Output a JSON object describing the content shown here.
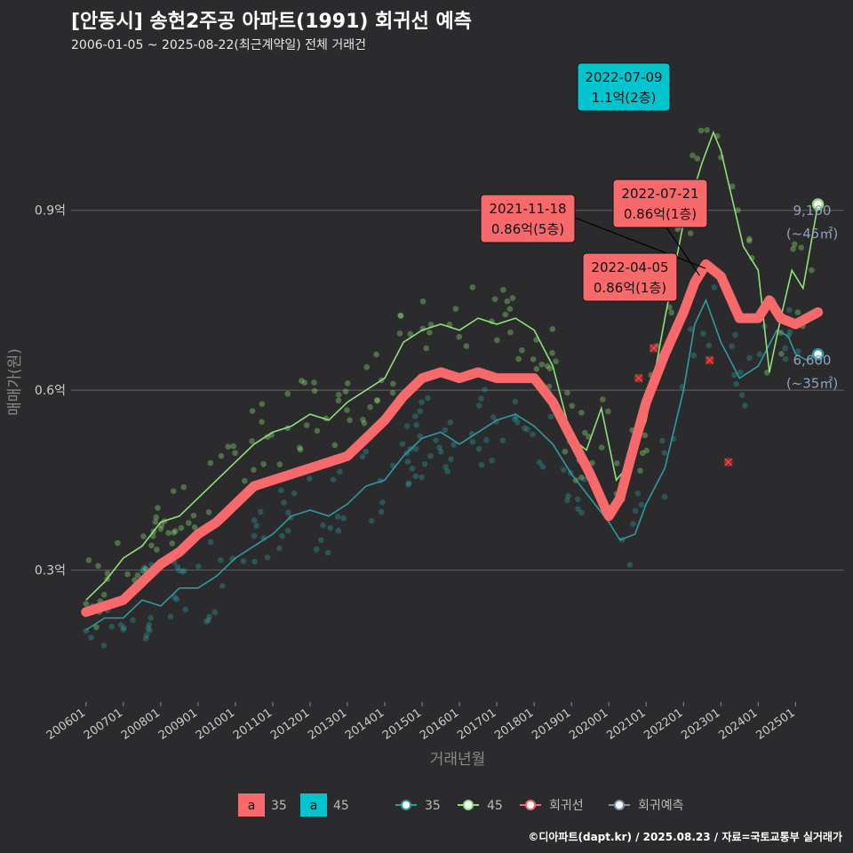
{
  "title": "[안동시] 송현2주공 아파트(1991) 회귀선 예측",
  "subtitle": "2006-01-05 ~ 2025-08-22(최근계약일) 전체 거래건",
  "credit": "©디아파트(dapt.kr) / 2025.08.23 / 자료=국토교통부 실거래가",
  "colors": {
    "background": "#2b2b2d",
    "grid": "#5a5a5c",
    "s35": "#2f9aa0",
    "s45": "#8fe07a",
    "regression": "#f8696b",
    "forecast": "#8090b0",
    "callout_cyan": "#00c5cf"
  },
  "chart_data": {
    "type": "line",
    "title": "[안동시] 송현2주공 아파트(1991) 회귀선 예측",
    "subtitle": "2006-01-05 ~ 2025-08-22(최근계약일) 전체 거래건",
    "xlabel": "거래년월",
    "ylabel": "매매가(원)",
    "x_ticks": [
      "200601",
      "200701",
      "200801",
      "200901",
      "201001",
      "201101",
      "201201",
      "201301",
      "201401",
      "201501",
      "201601",
      "201701",
      "201801",
      "201901",
      "202001",
      "202101",
      "202201",
      "202301",
      "202401",
      "202501"
    ],
    "y_ticks": [
      {
        "value": 0.3,
        "label": "0.3억"
      },
      {
        "value": 0.6,
        "label": "0.6억"
      },
      {
        "value": 0.9,
        "label": "0.9억"
      }
    ],
    "xlim": [
      2005.6,
      2026.3
    ],
    "ylim": [
      0.08,
      1.15
    ],
    "grid": true,
    "series": [
      {
        "name": "35",
        "key": "s35",
        "points": [
          [
            2006.0,
            0.2
          ],
          [
            2006.5,
            0.22
          ],
          [
            2007.0,
            0.22
          ],
          [
            2007.5,
            0.25
          ],
          [
            2008.0,
            0.24
          ],
          [
            2008.5,
            0.27
          ],
          [
            2009.0,
            0.27
          ],
          [
            2009.5,
            0.29
          ],
          [
            2010.0,
            0.32
          ],
          [
            2010.5,
            0.34
          ],
          [
            2011.0,
            0.36
          ],
          [
            2011.5,
            0.39
          ],
          [
            2012.0,
            0.4
          ],
          [
            2012.5,
            0.39
          ],
          [
            2013.0,
            0.41
          ],
          [
            2013.5,
            0.44
          ],
          [
            2014.0,
            0.45
          ],
          [
            2014.5,
            0.49
          ],
          [
            2015.0,
            0.52
          ],
          [
            2015.5,
            0.53
          ],
          [
            2016.0,
            0.51
          ],
          [
            2016.5,
            0.53
          ],
          [
            2017.0,
            0.55
          ],
          [
            2017.5,
            0.56
          ],
          [
            2018.0,
            0.54
          ],
          [
            2018.5,
            0.51
          ],
          [
            2019.0,
            0.46
          ],
          [
            2019.5,
            0.42
          ],
          [
            2020.0,
            0.38
          ],
          [
            2020.3,
            0.35
          ],
          [
            2020.7,
            0.36
          ],
          [
            2021.0,
            0.41
          ],
          [
            2021.5,
            0.47
          ],
          [
            2022.0,
            0.6
          ],
          [
            2022.3,
            0.71
          ],
          [
            2022.6,
            0.75
          ],
          [
            2023.0,
            0.68
          ],
          [
            2023.5,
            0.62
          ],
          [
            2024.0,
            0.64
          ],
          [
            2024.5,
            0.7
          ],
          [
            2024.8,
            0.69
          ],
          [
            2025.0,
            0.66
          ],
          [
            2025.3,
            0.65
          ],
          [
            2025.6,
            0.66
          ]
        ]
      },
      {
        "name": "45",
        "key": "s45",
        "points": [
          [
            2006.0,
            0.25
          ],
          [
            2006.5,
            0.28
          ],
          [
            2007.0,
            0.32
          ],
          [
            2007.5,
            0.34
          ],
          [
            2008.0,
            0.38
          ],
          [
            2008.5,
            0.39
          ],
          [
            2009.0,
            0.42
          ],
          [
            2009.5,
            0.45
          ],
          [
            2010.0,
            0.48
          ],
          [
            2010.5,
            0.51
          ],
          [
            2011.0,
            0.53
          ],
          [
            2011.5,
            0.54
          ],
          [
            2012.0,
            0.56
          ],
          [
            2012.5,
            0.55
          ],
          [
            2013.0,
            0.58
          ],
          [
            2013.5,
            0.6
          ],
          [
            2014.0,
            0.62
          ],
          [
            2014.5,
            0.68
          ],
          [
            2015.0,
            0.7
          ],
          [
            2015.5,
            0.71
          ],
          [
            2016.0,
            0.7
          ],
          [
            2016.5,
            0.72
          ],
          [
            2017.0,
            0.71
          ],
          [
            2017.5,
            0.72
          ],
          [
            2018.0,
            0.7
          ],
          [
            2018.5,
            0.64
          ],
          [
            2019.0,
            0.52
          ],
          [
            2019.4,
            0.5
          ],
          [
            2019.8,
            0.57
          ],
          [
            2020.2,
            0.45
          ],
          [
            2020.6,
            0.48
          ],
          [
            2021.0,
            0.55
          ],
          [
            2021.5,
            0.72
          ],
          [
            2022.0,
            0.88
          ],
          [
            2022.5,
            0.98
          ],
          [
            2022.8,
            1.03
          ],
          [
            2023.0,
            1.0
          ],
          [
            2023.3,
            0.92
          ],
          [
            2023.6,
            0.84
          ],
          [
            2024.0,
            0.8
          ],
          [
            2024.3,
            0.63
          ],
          [
            2024.6,
            0.72
          ],
          [
            2024.9,
            0.8
          ],
          [
            2025.2,
            0.77
          ],
          [
            2025.6,
            0.91
          ]
        ]
      }
    ],
    "regression": {
      "name": "회귀선",
      "points": [
        [
          2006.0,
          0.23
        ],
        [
          2006.5,
          0.24
        ],
        [
          2007.0,
          0.25
        ],
        [
          2007.5,
          0.28
        ],
        [
          2008.0,
          0.31
        ],
        [
          2008.5,
          0.33
        ],
        [
          2009.0,
          0.36
        ],
        [
          2009.5,
          0.38
        ],
        [
          2010.0,
          0.41
        ],
        [
          2010.5,
          0.44
        ],
        [
          2011.0,
          0.45
        ],
        [
          2011.5,
          0.46
        ],
        [
          2012.0,
          0.47
        ],
        [
          2012.5,
          0.48
        ],
        [
          2013.0,
          0.49
        ],
        [
          2013.5,
          0.52
        ],
        [
          2014.0,
          0.55
        ],
        [
          2014.5,
          0.59
        ],
        [
          2015.0,
          0.62
        ],
        [
          2015.5,
          0.63
        ],
        [
          2016.0,
          0.62
        ],
        [
          2016.5,
          0.63
        ],
        [
          2017.0,
          0.62
        ],
        [
          2017.5,
          0.62
        ],
        [
          2018.0,
          0.62
        ],
        [
          2018.5,
          0.58
        ],
        [
          2019.0,
          0.52
        ],
        [
          2019.5,
          0.46
        ],
        [
          2020.0,
          0.39
        ],
        [
          2020.3,
          0.42
        ],
        [
          2020.6,
          0.49
        ],
        [
          2021.0,
          0.58
        ],
        [
          2021.5,
          0.66
        ],
        [
          2022.0,
          0.73
        ],
        [
          2022.3,
          0.78
        ],
        [
          2022.6,
          0.81
        ],
        [
          2023.0,
          0.79
        ],
        [
          2023.5,
          0.72
        ],
        [
          2024.0,
          0.72
        ],
        [
          2024.3,
          0.75
        ],
        [
          2024.6,
          0.72
        ],
        [
          2025.0,
          0.71
        ],
        [
          2025.3,
          0.72
        ],
        [
          2025.6,
          0.73
        ]
      ]
    },
    "forecast": {
      "name": "회귀예측"
    },
    "end_labels": [
      {
        "series": "45",
        "x": 2025.6,
        "y": 0.91,
        "value_text": "9,100",
        "area_text": "(~45㎡)"
      },
      {
        "series": "35",
        "x": 2025.6,
        "y": 0.66,
        "value_text": "6,600",
        "area_text": "(~35㎡)"
      }
    ],
    "annotations": [
      {
        "date": "2022-07-09",
        "price": "1.1억(2층)",
        "style": "cyan",
        "x": 2022.52,
        "y": 1.1
      },
      {
        "date": "2021-11-18",
        "price": "0.86억(5층)",
        "style": "red",
        "x": 2021.88,
        "y": 0.86
      },
      {
        "date": "2022-07-21",
        "price": "0.86억(1층)",
        "style": "red",
        "x": 2022.55,
        "y": 0.86
      },
      {
        "date": "2022-04-05",
        "price": "0.86억(1층)",
        "style": "red",
        "x": 2022.26,
        "y": 0.86
      }
    ],
    "outlier_marks": [
      [
        2020.8,
        0.62
      ],
      [
        2021.2,
        0.67
      ],
      [
        2022.7,
        0.65
      ],
      [
        2023.2,
        0.48
      ]
    ],
    "legend": {
      "placement": "bottom",
      "fill_items": [
        {
          "key": "a",
          "label": "35",
          "style": "red"
        },
        {
          "key": "a",
          "label": "45",
          "style": "cyan"
        }
      ],
      "line_items": [
        {
          "label": "35",
          "style": "s35"
        },
        {
          "label": "45",
          "style": "s45"
        },
        {
          "label": "회귀선",
          "style": "regression"
        },
        {
          "label": "회귀예측",
          "style": "forecast"
        }
      ]
    }
  }
}
